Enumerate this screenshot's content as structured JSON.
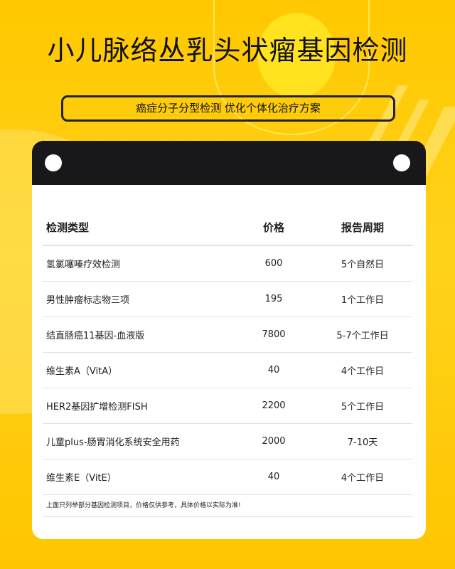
{
  "title": "小儿脉络丛乳头状瘤基因检测",
  "subtitle": "癌症分子分型检测 优化个体化治疗方案",
  "table": {
    "headers": [
      "检测类型",
      "价格",
      "报告周期"
    ],
    "rows": [
      [
        "氢氯噻嗪疗效检测",
        "600",
        "5个自然日"
      ],
      [
        "男性肿瘤标志物三项",
        "195",
        "1个工作日"
      ],
      [
        "结直肠癌11基因-血液版",
        "7800",
        "5-7个工作日"
      ],
      [
        "维生素A（VitA）",
        "40",
        "4个工作日"
      ],
      [
        "HER2基因扩增检测FISH",
        "2200",
        "5个工作日"
      ],
      [
        "儿童plus-肠胃消化系统安全用药",
        "2000",
        "7-10天"
      ],
      [
        "维生素E（VitE）",
        "40",
        "4个工作日"
      ]
    ]
  },
  "note": "上面只列举部分基因检测项目，价格仅供参考，具体价格以实际为准!",
  "colors": {
    "background": "#ffc800",
    "header": "#18181a"
  }
}
